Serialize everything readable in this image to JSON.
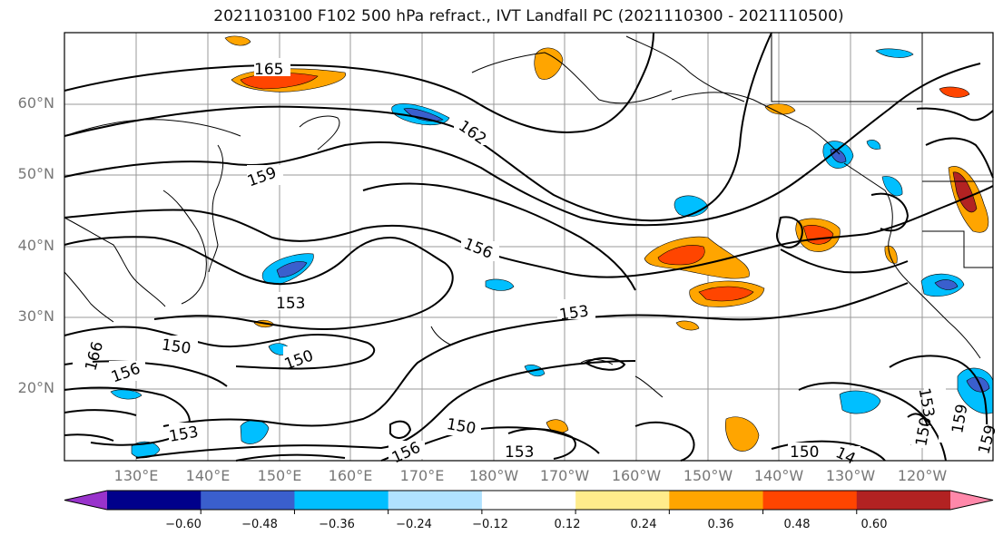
{
  "title": "2021103100 F102 500 hPa refract., IVT Landfall PC (2021110300 - 2021110500)",
  "latitude_labels": [
    "60°N",
    "50°N",
    "40°N",
    "30°N",
    "20°N"
  ],
  "longitude_labels": [
    "130°E",
    "140°E",
    "150°E",
    "160°E",
    "170°E",
    "180°W",
    "170°W",
    "160°W",
    "150°W",
    "140°W",
    "130°W",
    "120°W"
  ],
  "contour_labels": [
    "165",
    "162",
    "159",
    "156",
    "153",
    "150",
    "153",
    "156",
    "150",
    "166",
    "156",
    "153",
    "150",
    "156",
    "153",
    "150",
    "159",
    "153",
    "159",
    "150",
    "14"
  ],
  "colorbar": {
    "colors": [
      "#9933cc",
      "#00008b",
      "#3a5fcd",
      "#00bfff",
      "#b0e2ff",
      "#ffffff",
      "#ffec8b",
      "#ffa500",
      "#ff4500",
      "#b22222",
      "#ff88aa"
    ],
    "tick_labels": [
      "−0.60",
      "−0.48",
      "−0.36",
      "−0.24",
      "−0.12",
      "0.12",
      "0.24",
      "0.36",
      "0.48",
      "0.60"
    ]
  }
}
